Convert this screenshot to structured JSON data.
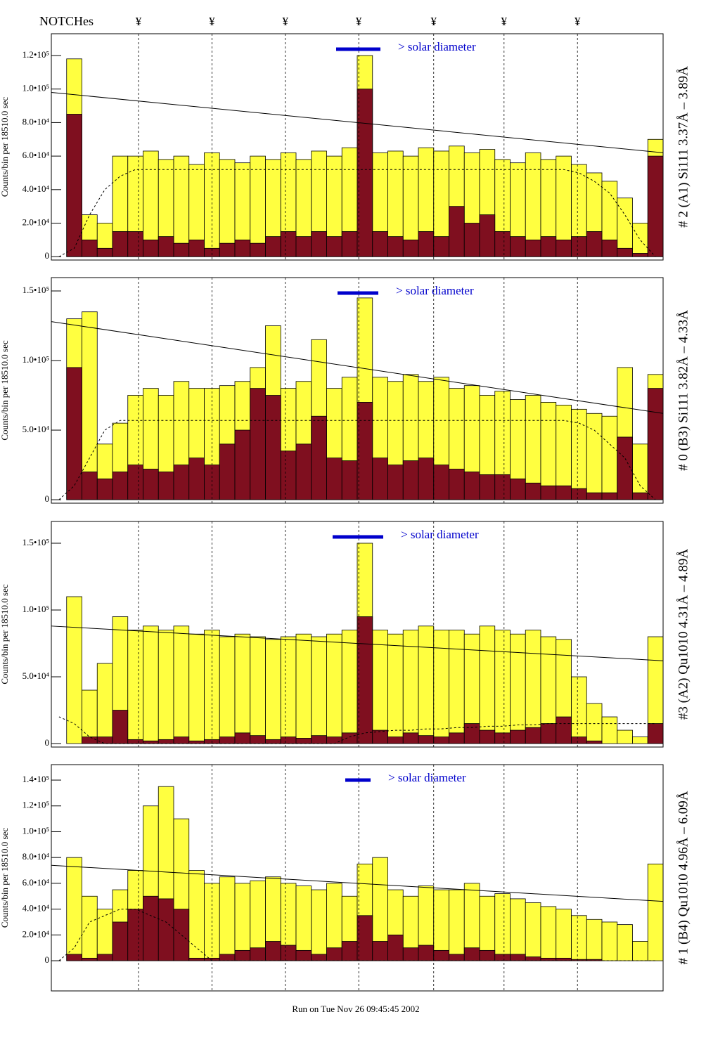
{
  "notches": {
    "label": "NOTCHes",
    "symbol": "¥",
    "positions": [
      5.7,
      10.5,
      15.3,
      20.1,
      25.0,
      29.6,
      34.4
    ]
  },
  "footer": "Run on Tue Nov 26 09:45:45 2002",
  "chart_data": [
    {
      "type": "bar",
      "title": "# 2 (A1) Si111  3.37Å – 3.89Å",
      "y_label": "Counts/bin per  18510.0 sec",
      "annotation": "> solar diameter",
      "annotation_color": "#0000cc",
      "categories": [
        null,
        null,
        null,
        null,
        null,
        null,
        null,
        null,
        null,
        null,
        null,
        null,
        null,
        null,
        null,
        null,
        null,
        null,
        null,
        null,
        null,
        null,
        null,
        null,
        null,
        null,
        null,
        null,
        null,
        null,
        null,
        null,
        null,
        null,
        null,
        null,
        null,
        null,
        null,
        null
      ],
      "series": [
        {
          "color": "#ffff40",
          "values": [
            0,
            118000,
            25000,
            20000,
            60000,
            60000,
            63000,
            58000,
            60000,
            55000,
            62000,
            58000,
            56000,
            60000,
            58000,
            62000,
            58000,
            63000,
            60000,
            65000,
            120000,
            62000,
            63000,
            60000,
            65000,
            63000,
            66000,
            62000,
            64000,
            58000,
            56000,
            62000,
            58000,
            60000,
            55000,
            50000,
            45000,
            35000,
            20000,
            70000
          ]
        },
        {
          "color": "#7f0f1f",
          "values": [
            0,
            85000,
            10000,
            5000,
            15000,
            15000,
            10000,
            12000,
            8000,
            10000,
            5000,
            8000,
            10000,
            8000,
            12000,
            15000,
            12000,
            15000,
            12000,
            15000,
            100000,
            15000,
            12000,
            10000,
            15000,
            12000,
            30000,
            20000,
            25000,
            15000,
            12000,
            10000,
            12000,
            10000,
            12000,
            15000,
            10000,
            5000,
            2000,
            60000
          ]
        },
        {
          "type": "line",
          "style": "dashed",
          "color": "#000000",
          "values": [
            0,
            5000,
            25000,
            40000,
            48000,
            52000,
            52000,
            52000,
            52000,
            52000,
            52000,
            52000,
            52000,
            52000,
            52000,
            52000,
            52000,
            52000,
            52000,
            52000,
            52000,
            52000,
            52000,
            52000,
            52000,
            52000,
            52000,
            52000,
            52000,
            52000,
            52000,
            52000,
            52000,
            52000,
            50000,
            45000,
            38000,
            25000,
            10000,
            0
          ]
        }
      ],
      "trend_line": {
        "start": 98000,
        "end": 62000
      },
      "ylim": [
        -2000,
        133000
      ],
      "yticks": [
        0,
        {
          "value": 20000,
          "label": "2.0•10⁴"
        },
        {
          "value": 40000,
          "label": "4.0•10⁴"
        },
        {
          "value": 60000,
          "label": "6.0•10⁴"
        },
        {
          "value": 80000,
          "label": "8.0•10⁴"
        },
        {
          "value": 100000,
          "label": "1.0•10⁵"
        },
        {
          "value": 120000,
          "label": "1.2•10⁵"
        }
      ]
    },
    {
      "type": "bar",
      "title": "# 0 (B3) Si111  3.82Å – 4.33Å",
      "y_label": "Counts/bin per  18510.0 sec",
      "annotation": "> solar diameter",
      "annotation_color": "#0000cc",
      "categories": [
        null,
        null,
        null,
        null,
        null,
        null,
        null,
        null,
        null,
        null,
        null,
        null,
        null,
        null,
        null,
        null,
        null,
        null,
        null,
        null,
        null,
        null,
        null,
        null,
        null,
        null,
        null,
        null,
        null,
        null,
        null,
        null,
        null,
        null,
        null,
        null,
        null,
        null,
        null,
        null
      ],
      "series": [
        {
          "color": "#ffff40",
          "values": [
            0,
            130000,
            135000,
            40000,
            55000,
            75000,
            80000,
            75000,
            85000,
            80000,
            80000,
            82000,
            85000,
            95000,
            125000,
            80000,
            85000,
            115000,
            80000,
            88000,
            145000,
            88000,
            85000,
            90000,
            85000,
            88000,
            80000,
            82000,
            75000,
            78000,
            72000,
            75000,
            70000,
            68000,
            65000,
            62000,
            60000,
            95000,
            40000,
            90000
          ]
        },
        {
          "color": "#7f0f1f",
          "values": [
            0,
            95000,
            20000,
            15000,
            20000,
            25000,
            22000,
            20000,
            25000,
            30000,
            25000,
            40000,
            50000,
            80000,
            75000,
            35000,
            40000,
            60000,
            30000,
            28000,
            70000,
            30000,
            25000,
            28000,
            30000,
            25000,
            22000,
            20000,
            18000,
            18000,
            15000,
            12000,
            10000,
            10000,
            8000,
            5000,
            5000,
            45000,
            5000,
            80000
          ]
        },
        {
          "type": "line",
          "style": "dashed",
          "color": "#000000",
          "values": [
            0,
            10000,
            30000,
            50000,
            57000,
            57000,
            57000,
            57000,
            57000,
            57000,
            57000,
            57000,
            57000,
            57000,
            57000,
            57000,
            57000,
            57000,
            57000,
            57000,
            57000,
            57000,
            57000,
            57000,
            57000,
            57000,
            57000,
            57000,
            57000,
            57000,
            57000,
            57000,
            57000,
            57000,
            55000,
            50000,
            40000,
            30000,
            10000,
            0
          ]
        }
      ],
      "trend_line": {
        "start": 128000,
        "end": 62000
      },
      "ylim": [
        -2500,
        159600
      ],
      "yticks": [
        0,
        {
          "value": 50000,
          "label": "5.0•10⁴"
        },
        {
          "value": 100000,
          "label": "1.0•10⁵"
        },
        {
          "value": 150000,
          "label": "1.5•10⁵"
        }
      ]
    },
    {
      "type": "bar",
      "title": "#3 (A2) Qu1010  4.31Å – 4.89Å",
      "y_label": "Counts/bin per  18510.0 sec",
      "annotation": "> solar diameter",
      "annotation_color": "#0000cc",
      "categories": [
        null,
        null,
        null,
        null,
        null,
        null,
        null,
        null,
        null,
        null,
        null,
        null,
        null,
        null,
        null,
        null,
        null,
        null,
        null,
        null,
        null,
        null,
        null,
        null,
        null,
        null,
        null,
        null,
        null,
        null,
        null,
        null,
        null,
        null,
        null,
        null,
        null,
        null,
        null,
        null
      ],
      "series": [
        {
          "color": "#ffff40",
          "values": [
            0,
            110000,
            40000,
            60000,
            95000,
            85000,
            88000,
            85000,
            88000,
            82000,
            85000,
            80000,
            82000,
            80000,
            78000,
            80000,
            82000,
            80000,
            82000,
            85000,
            150000,
            85000,
            82000,
            85000,
            88000,
            85000,
            85000,
            82000,
            88000,
            85000,
            82000,
            85000,
            80000,
            78000,
            50000,
            30000,
            20000,
            10000,
            5000,
            80000
          ]
        },
        {
          "color": "#7f0f1f",
          "values": [
            0,
            0,
            5000,
            5000,
            25000,
            3000,
            2000,
            3000,
            5000,
            2000,
            3000,
            5000,
            8000,
            6000,
            3000,
            5000,
            4000,
            6000,
            5000,
            8000,
            95000,
            10000,
            5000,
            8000,
            6000,
            5000,
            8000,
            15000,
            10000,
            8000,
            10000,
            12000,
            15000,
            20000,
            5000,
            2000,
            0,
            0,
            0,
            15000
          ]
        },
        {
          "type": "line",
          "style": "dashed",
          "color": "#000000",
          "values": [
            20000,
            15000,
            5000,
            0,
            0,
            0,
            0,
            0,
            0,
            0,
            0,
            0,
            0,
            0,
            0,
            0,
            0,
            0,
            0,
            5000,
            8000,
            9000,
            10000,
            10000,
            11000,
            11000,
            12000,
            12000,
            13000,
            13000,
            14000,
            14000,
            15000,
            15000,
            15000,
            15000,
            15000,
            15000,
            15000,
            15000
          ]
        }
      ],
      "trend_line": {
        "start": 88000,
        "end": 62000
      },
      "ylim": [
        -2600,
        166300
      ],
      "yticks": [
        0,
        {
          "value": 50000,
          "label": "5.0•10⁴"
        },
        {
          "value": 100000,
          "label": "1.0•10⁵"
        },
        {
          "value": 150000,
          "label": "1.5•10⁵"
        }
      ]
    },
    {
      "type": "bar",
      "title": "# 1 (B4) Qu1010 4.96Å – 6.09Å",
      "y_label": "Counts/bin per  18510.0 sec",
      "annotation": "> solar diameter",
      "annotation_color": "#0000cc",
      "categories": [
        null,
        null,
        null,
        null,
        null,
        null,
        null,
        null,
        null,
        null,
        null,
        null,
        null,
        null,
        null,
        null,
        null,
        null,
        null,
        null,
        null,
        null,
        null,
        null,
        null,
        null,
        null,
        null,
        null,
        null,
        null,
        null,
        null,
        null,
        null,
        null,
        null,
        null,
        null,
        null
      ],
      "series": [
        {
          "color": "#ffff40",
          "values": [
            0,
            80000,
            50000,
            40000,
            55000,
            70000,
            120000,
            135000,
            110000,
            70000,
            60000,
            65000,
            60000,
            62000,
            65000,
            60000,
            58000,
            55000,
            60000,
            50000,
            75000,
            80000,
            55000,
            50000,
            58000,
            55000,
            55000,
            60000,
            50000,
            52000,
            48000,
            45000,
            42000,
            40000,
            35000,
            32000,
            30000,
            28000,
            15000,
            75000
          ]
        },
        {
          "color": "#7f0f1f",
          "values": [
            0,
            5000,
            2000,
            5000,
            30000,
            40000,
            50000,
            48000,
            40000,
            2000,
            2000,
            5000,
            8000,
            10000,
            15000,
            12000,
            8000,
            5000,
            10000,
            15000,
            35000,
            15000,
            20000,
            10000,
            12000,
            8000,
            5000,
            10000,
            8000,
            5000,
            5000,
            3000,
            2000,
            2000,
            1000,
            1000,
            0,
            0,
            0,
            0
          ]
        },
        {
          "type": "line",
          "style": "dashed",
          "color": "#000000",
          "values": [
            0,
            10000,
            30000,
            35000,
            40000,
            40000,
            35000,
            30000,
            20000,
            10000,
            0,
            0,
            0,
            0,
            0,
            0,
            0,
            0,
            0,
            0,
            0,
            0,
            0,
            0,
            0,
            0,
            0,
            0,
            0,
            0,
            0,
            0,
            0,
            0,
            0,
            0,
            0,
            0,
            0,
            0
          ]
        }
      ],
      "trend_line": {
        "start": 74000,
        "end": 46000
      },
      "ylim": [
        -23400,
        152000
      ],
      "yticks": [
        0,
        {
          "value": 20000,
          "label": "2.0•10⁴"
        },
        {
          "value": 40000,
          "label": "4.0•10⁴"
        },
        {
          "value": 60000,
          "label": "6.0•10⁴"
        },
        {
          "value": 80000,
          "label": "8.0•10⁴"
        },
        {
          "value": 100000,
          "label": "1.0•10⁵"
        },
        {
          "value": 120000,
          "label": "1.2•10⁵"
        },
        {
          "value": 140000,
          "label": "1.4•10⁵"
        }
      ]
    }
  ]
}
